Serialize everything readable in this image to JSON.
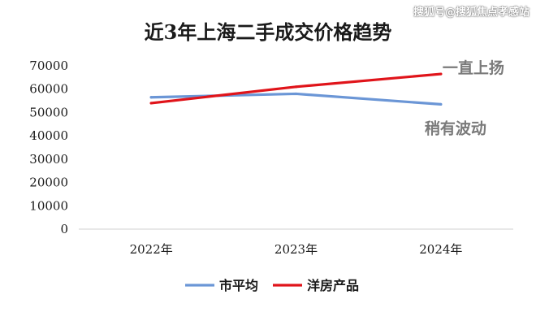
{
  "watermark": "搜狐号@搜狐焦点孝感站",
  "chart_data": {
    "type": "line",
    "title": "近3年上海二手成交价格趋势",
    "categories": [
      "2022年",
      "2023年",
      "2024年"
    ],
    "series": [
      {
        "name": "市平均",
        "values": [
          56500,
          58000,
          53500
        ],
        "color": "#6b96d6"
      },
      {
        "name": "洋房产品",
        "values": [
          54000,
          61000,
          66500
        ],
        "color": "#e0141a"
      }
    ],
    "ylim": [
      0,
      70000
    ],
    "yticks": [
      0,
      10000,
      20000,
      30000,
      40000,
      50000,
      60000,
      70000
    ],
    "grid": false,
    "legend": "bottom",
    "annotations": [
      {
        "text": "一直上扬",
        "series": 1
      },
      {
        "text": "稍有波动",
        "series": 0
      }
    ]
  }
}
